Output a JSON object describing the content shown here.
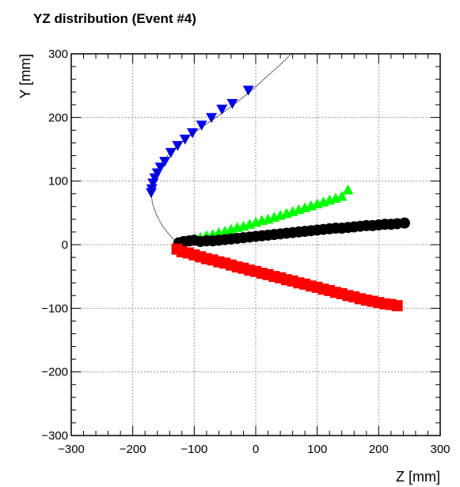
{
  "chart_data": {
    "type": "scatter",
    "title": "YZ distribution (Event #4)",
    "xlabel": "Z [mm]",
    "ylabel": "Y [mm]",
    "xlim": [
      -300,
      300
    ],
    "ylim": [
      -300,
      300
    ],
    "grid": true,
    "x_ticks": [
      -300,
      -200,
      -100,
      0,
      100,
      200,
      300
    ],
    "y_ticks": [
      -300,
      -200,
      -100,
      0,
      100,
      200,
      300
    ],
    "x_tick_labels": [
      "−300",
      "−200",
      "−100",
      "0",
      "100",
      "200",
      "300"
    ],
    "y_tick_labels": [
      "−300",
      "−200",
      "−100",
      "0",
      "100",
      "200",
      "300"
    ],
    "series": [
      {
        "marker": "triangle-down",
        "color": "#0000ff",
        "x": [
          -12,
          -38,
          -55,
          -72,
          -88,
          -103,
          -115,
          -127,
          -138,
          -148,
          -155,
          -160,
          -164,
          -167,
          -169,
          -170
        ],
        "y": [
          243,
          222,
          213,
          200,
          188,
          176,
          166,
          156,
          145,
          131,
          122,
          113,
          105,
          97,
          88,
          82
        ]
      },
      {
        "marker": "triangle-up",
        "color": "#00ff00",
        "x": [
          -128,
          -120,
          -110,
          -100,
          -90,
          -80,
          -70,
          -60,
          -50,
          -40,
          -30,
          -20,
          -10,
          0,
          10,
          20,
          30,
          40,
          50,
          60,
          70,
          80,
          90,
          100,
          110,
          120,
          130,
          140,
          150
        ],
        "y": [
          2,
          4,
          6,
          9,
          11,
          14,
          16,
          19,
          21,
          24,
          27,
          29,
          32,
          35,
          38,
          40,
          43,
          46,
          49,
          52,
          55,
          58,
          61,
          64,
          67,
          70,
          73,
          76,
          86
        ]
      },
      {
        "marker": "circle",
        "color": "#000000",
        "x": [
          -125,
          -117,
          -108,
          -100,
          -90,
          -80,
          -70,
          -60,
          -50,
          -40,
          -30,
          -20,
          -10,
          0,
          10,
          20,
          30,
          40,
          50,
          60,
          70,
          80,
          90,
          100,
          110,
          120,
          130,
          140,
          150,
          160,
          170,
          180,
          190,
          200,
          210,
          220,
          230,
          242
        ],
        "y": [
          3,
          5,
          6,
          7,
          5,
          6,
          6,
          7,
          8,
          9,
          10,
          11,
          12,
          13,
          14,
          15,
          16,
          17,
          18,
          19,
          20,
          21,
          22,
          23,
          24,
          25,
          26,
          26,
          27,
          28,
          29,
          30,
          30,
          31,
          32,
          32,
          33,
          34
        ]
      },
      {
        "marker": "square",
        "color": "#ff0000",
        "x": [
          -128,
          -120,
          -110,
          -100,
          -90,
          -80,
          -70,
          -60,
          -50,
          -40,
          -30,
          -20,
          -10,
          0,
          10,
          20,
          30,
          40,
          50,
          60,
          70,
          80,
          90,
          100,
          110,
          120,
          130,
          140,
          150,
          160,
          170,
          180,
          190,
          200,
          210,
          220,
          230
        ],
        "y": [
          -7,
          -11,
          -13,
          -16,
          -19,
          -22,
          -24,
          -27,
          -29,
          -32,
          -35,
          -37,
          -40,
          -42,
          -45,
          -47,
          -50,
          -52,
          -55,
          -57,
          -60,
          -62,
          -65,
          -67,
          -70,
          -72,
          -75,
          -77,
          -80,
          -82,
          -85,
          -87,
          -89,
          -91,
          -93,
          -94,
          -96
        ]
      },
      {
        "marker": "line",
        "color": "#000000",
        "x": [
          58,
          40,
          20,
          0,
          -20,
          -40,
          -60,
          -80,
          -100,
          -115,
          -130,
          -145,
          -155,
          -163,
          -168,
          -170,
          -168,
          -162,
          -152,
          -140,
          -130,
          -125
        ],
        "y": [
          300,
          283,
          266,
          248,
          232,
          217,
          203,
          190,
          176,
          165,
          153,
          138,
          125,
          111,
          97,
          80,
          65,
          48,
          30,
          15,
          5,
          1
        ]
      }
    ]
  }
}
